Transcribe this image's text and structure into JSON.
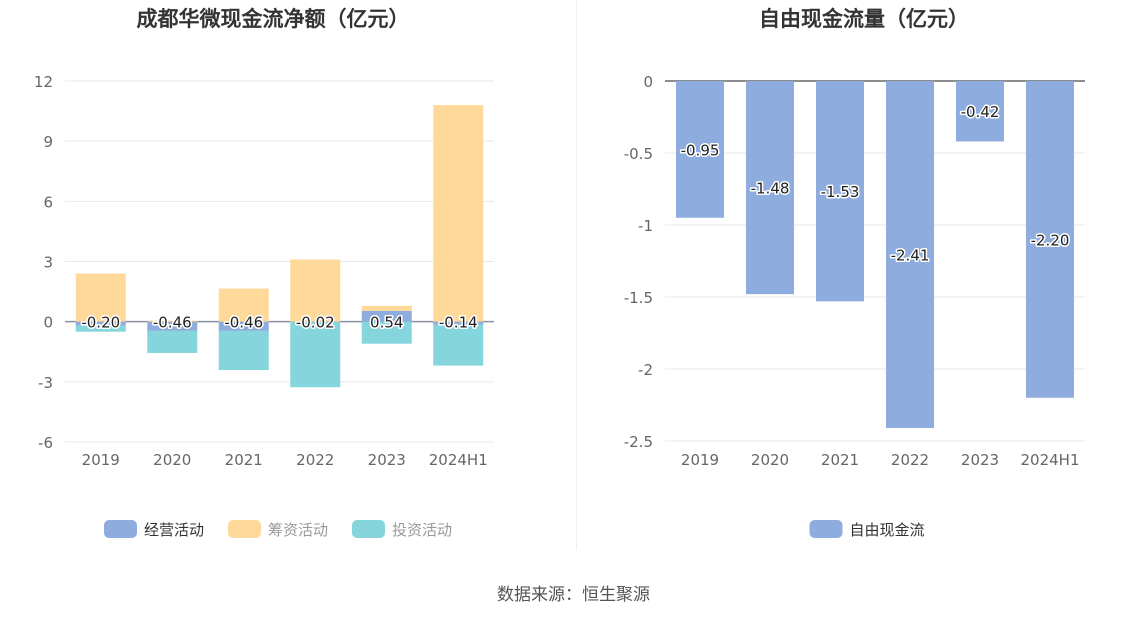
{
  "source_text": "数据来源：恒生聚源",
  "chart_data": [
    {
      "type": "bar",
      "stacked": true,
      "title": "成都华微现金流净额（亿元）",
      "categories": [
        "2019",
        "2020",
        "2021",
        "2022",
        "2023",
        "2024H1"
      ],
      "ylim": [
        -6,
        12
      ],
      "yticks": [
        -6,
        -3,
        0,
        3,
        6,
        9,
        12
      ],
      "grid": true,
      "legend_position": "bottom-center",
      "series": [
        {
          "name": "经营活动",
          "color": "#8eadde",
          "values": [
            -0.2,
            -0.46,
            -0.46,
            -0.02,
            0.54,
            -0.14
          ],
          "labels": [
            "-0.20",
            "-0.46",
            "-0.46",
            "-0.02",
            "0.54",
            "-0.14"
          ]
        },
        {
          "name": "筹资活动",
          "color": "#ffd99a",
          "values": [
            2.4,
            0.05,
            1.65,
            3.1,
            0.25,
            10.8
          ]
        },
        {
          "name": "投资活动",
          "color": "#85d6dc",
          "values": [
            -0.3,
            -1.1,
            -1.95,
            -3.25,
            -1.1,
            -2.05
          ]
        }
      ]
    },
    {
      "type": "bar",
      "title": "自由现金流量（亿元）",
      "categories": [
        "2019",
        "2020",
        "2021",
        "2022",
        "2023",
        "2024H1"
      ],
      "ylim": [
        -2.5,
        0
      ],
      "yticks": [
        -2.5,
        -2,
        -1.5,
        -1,
        -0.5,
        0
      ],
      "ytick_labels": [
        "-2.5",
        "-2",
        "-1.5",
        "-1",
        "-0.5",
        "0"
      ],
      "grid": true,
      "legend_position": "bottom-center",
      "series": [
        {
          "name": "自由现金流",
          "color": "#8eadde",
          "values": [
            -0.95,
            -1.48,
            -1.53,
            -2.41,
            -0.42,
            -2.2
          ],
          "labels": [
            "-0.95",
            "-1.48",
            "-1.53",
            "-2.41",
            "-0.42",
            "-2.20"
          ]
        }
      ]
    }
  ]
}
